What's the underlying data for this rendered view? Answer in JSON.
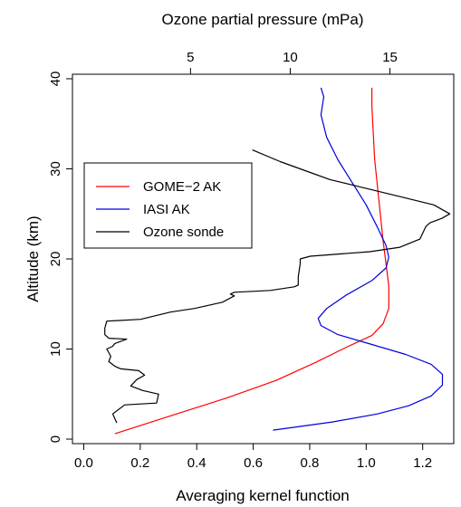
{
  "chart_data": {
    "type": "line",
    "title": "",
    "xlabel": "Averaging kernel function",
    "x2label": "Ozone partial pressure (mPa)",
    "ylabel": "Altitude (km)",
    "xlim": [
      -0.04,
      1.31
    ],
    "x2lim": [
      -0.92,
      18.2
    ],
    "ylim": [
      -0.5,
      40.5
    ],
    "x_ticks": [
      0.0,
      0.2,
      0.4,
      0.6,
      0.8,
      1.0,
      1.2
    ],
    "x_tick_labels": [
      "0.0",
      "0.2",
      "0.4",
      "0.6",
      "0.8",
      "1.0",
      "1.2"
    ],
    "x2_ticks": [
      5,
      10,
      15
    ],
    "x2_tick_labels": [
      "5",
      "10",
      "15"
    ],
    "y_ticks": [
      0,
      10,
      20,
      30,
      40
    ],
    "y_tick_labels": [
      "0",
      "10",
      "20",
      "30",
      "40"
    ],
    "grid": false,
    "legend_position": "upper-left",
    "series": [
      {
        "name": "GOME−2 AK",
        "color": "#ff0000",
        "axis": "bottom",
        "points": [
          [
            0.11,
            0.6
          ],
          [
            0.3,
            2.5
          ],
          [
            0.5,
            4.5
          ],
          [
            0.68,
            6.5
          ],
          [
            0.82,
            8.5
          ],
          [
            0.93,
            10.2
          ],
          [
            1.02,
            11.5
          ],
          [
            1.06,
            12.8
          ],
          [
            1.08,
            14.5
          ],
          [
            1.08,
            17
          ],
          [
            1.07,
            19.5
          ],
          [
            1.06,
            22
          ],
          [
            1.05,
            25
          ],
          [
            1.04,
            28
          ],
          [
            1.03,
            31
          ],
          [
            1.025,
            34
          ],
          [
            1.02,
            37
          ],
          [
            1.02,
            39
          ]
        ]
      },
      {
        "name": "IASI AK",
        "color": "#0000dd",
        "axis": "bottom",
        "points": [
          [
            0.67,
            1
          ],
          [
            0.88,
            1.9
          ],
          [
            1.04,
            2.8
          ],
          [
            1.15,
            3.7
          ],
          [
            1.23,
            4.8
          ],
          [
            1.27,
            6
          ],
          [
            1.27,
            7.2
          ],
          [
            1.23,
            8.3
          ],
          [
            1.14,
            9.4
          ],
          [
            1.02,
            10.5
          ],
          [
            0.9,
            11.6
          ],
          [
            0.84,
            12.6
          ],
          [
            0.83,
            13.4
          ],
          [
            0.86,
            14.5
          ],
          [
            0.93,
            16
          ],
          [
            1.02,
            17.6
          ],
          [
            1.07,
            19
          ],
          [
            1.08,
            20.2
          ],
          [
            1.07,
            21.5
          ],
          [
            1.04,
            23.5
          ],
          [
            1.0,
            26
          ],
          [
            0.95,
            28.5
          ],
          [
            0.9,
            31
          ],
          [
            0.86,
            33.5
          ],
          [
            0.84,
            36
          ],
          [
            0.85,
            38
          ],
          [
            0.84,
            39
          ]
        ]
      },
      {
        "name": "Ozone sonde",
        "color": "#000000",
        "axis": "top",
        "points": [
          [
            1.3,
            1.8
          ],
          [
            1.1,
            2.8
          ],
          [
            1.7,
            3.8
          ],
          [
            3.3,
            4
          ],
          [
            3.4,
            5
          ],
          [
            2.6,
            5.4
          ],
          [
            2.0,
            5.9
          ],
          [
            2.3,
            6.6
          ],
          [
            2.7,
            7.1
          ],
          [
            2.4,
            7.6
          ],
          [
            1.5,
            7.8
          ],
          [
            1.2,
            8.1
          ],
          [
            0.9,
            8.6
          ],
          [
            1.0,
            9.2
          ],
          [
            0.8,
            10
          ],
          [
            1.1,
            10.3
          ],
          [
            1.2,
            10.6
          ],
          [
            1.8,
            11.1
          ],
          [
            0.9,
            11.2
          ],
          [
            0.7,
            11.6
          ],
          [
            0.7,
            12.3
          ],
          [
            0.8,
            13.1
          ],
          [
            2.5,
            13.3
          ],
          [
            4.0,
            14.1
          ],
          [
            5.2,
            14.5
          ],
          [
            6.6,
            15.2
          ],
          [
            7.2,
            15.9
          ],
          [
            7.0,
            16.1
          ],
          [
            7.2,
            16.3
          ],
          [
            9.0,
            16.5
          ],
          [
            10.2,
            16.9
          ],
          [
            10.4,
            17.1
          ],
          [
            10.4,
            18.0
          ],
          [
            10.5,
            19.5
          ],
          [
            10.5,
            20.0
          ],
          [
            11.0,
            20.3
          ],
          [
            14.0,
            20.8
          ],
          [
            15.5,
            21.3
          ],
          [
            16.5,
            22.2
          ],
          [
            16.8,
            23.6
          ],
          [
            17.0,
            24
          ],
          [
            17.6,
            24.5
          ],
          [
            18.0,
            25.0
          ],
          [
            17.2,
            26.0
          ],
          [
            15.0,
            27.2
          ],
          [
            13.5,
            28.0
          ],
          [
            12.0,
            28.8
          ],
          [
            11.0,
            29.6
          ],
          [
            9.5,
            30.8
          ],
          [
            8.1,
            32.1
          ]
        ]
      }
    ]
  }
}
